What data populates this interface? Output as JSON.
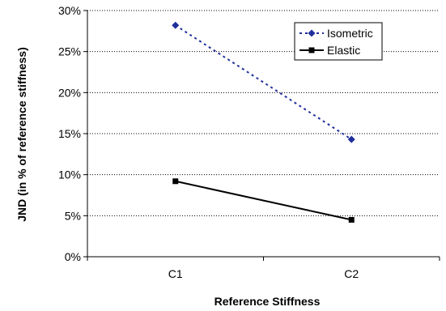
{
  "chart_data": {
    "type": "line",
    "title": "",
    "xlabel": "Reference Stiffness",
    "ylabel": "JND (in % of reference stiffness)",
    "categories": [
      "C1",
      "C2"
    ],
    "ylim": [
      0,
      30
    ],
    "ytick_values": [
      0,
      5,
      10,
      15,
      20,
      25,
      30
    ],
    "ytick_labels": [
      "0%",
      "5%",
      "10%",
      "15%",
      "20%",
      "25%",
      "30%"
    ],
    "grid": true,
    "legend_position": "top-right",
    "series": [
      {
        "name": "Isometric",
        "values": [
          28.2,
          14.3
        ],
        "color": "#1f2f9a",
        "line_style": "dotted",
        "marker": "diamond"
      },
      {
        "name": "Elastic",
        "values": [
          9.2,
          4.5
        ],
        "color": "#000000",
        "line_style": "solid",
        "marker": "square"
      }
    ]
  }
}
